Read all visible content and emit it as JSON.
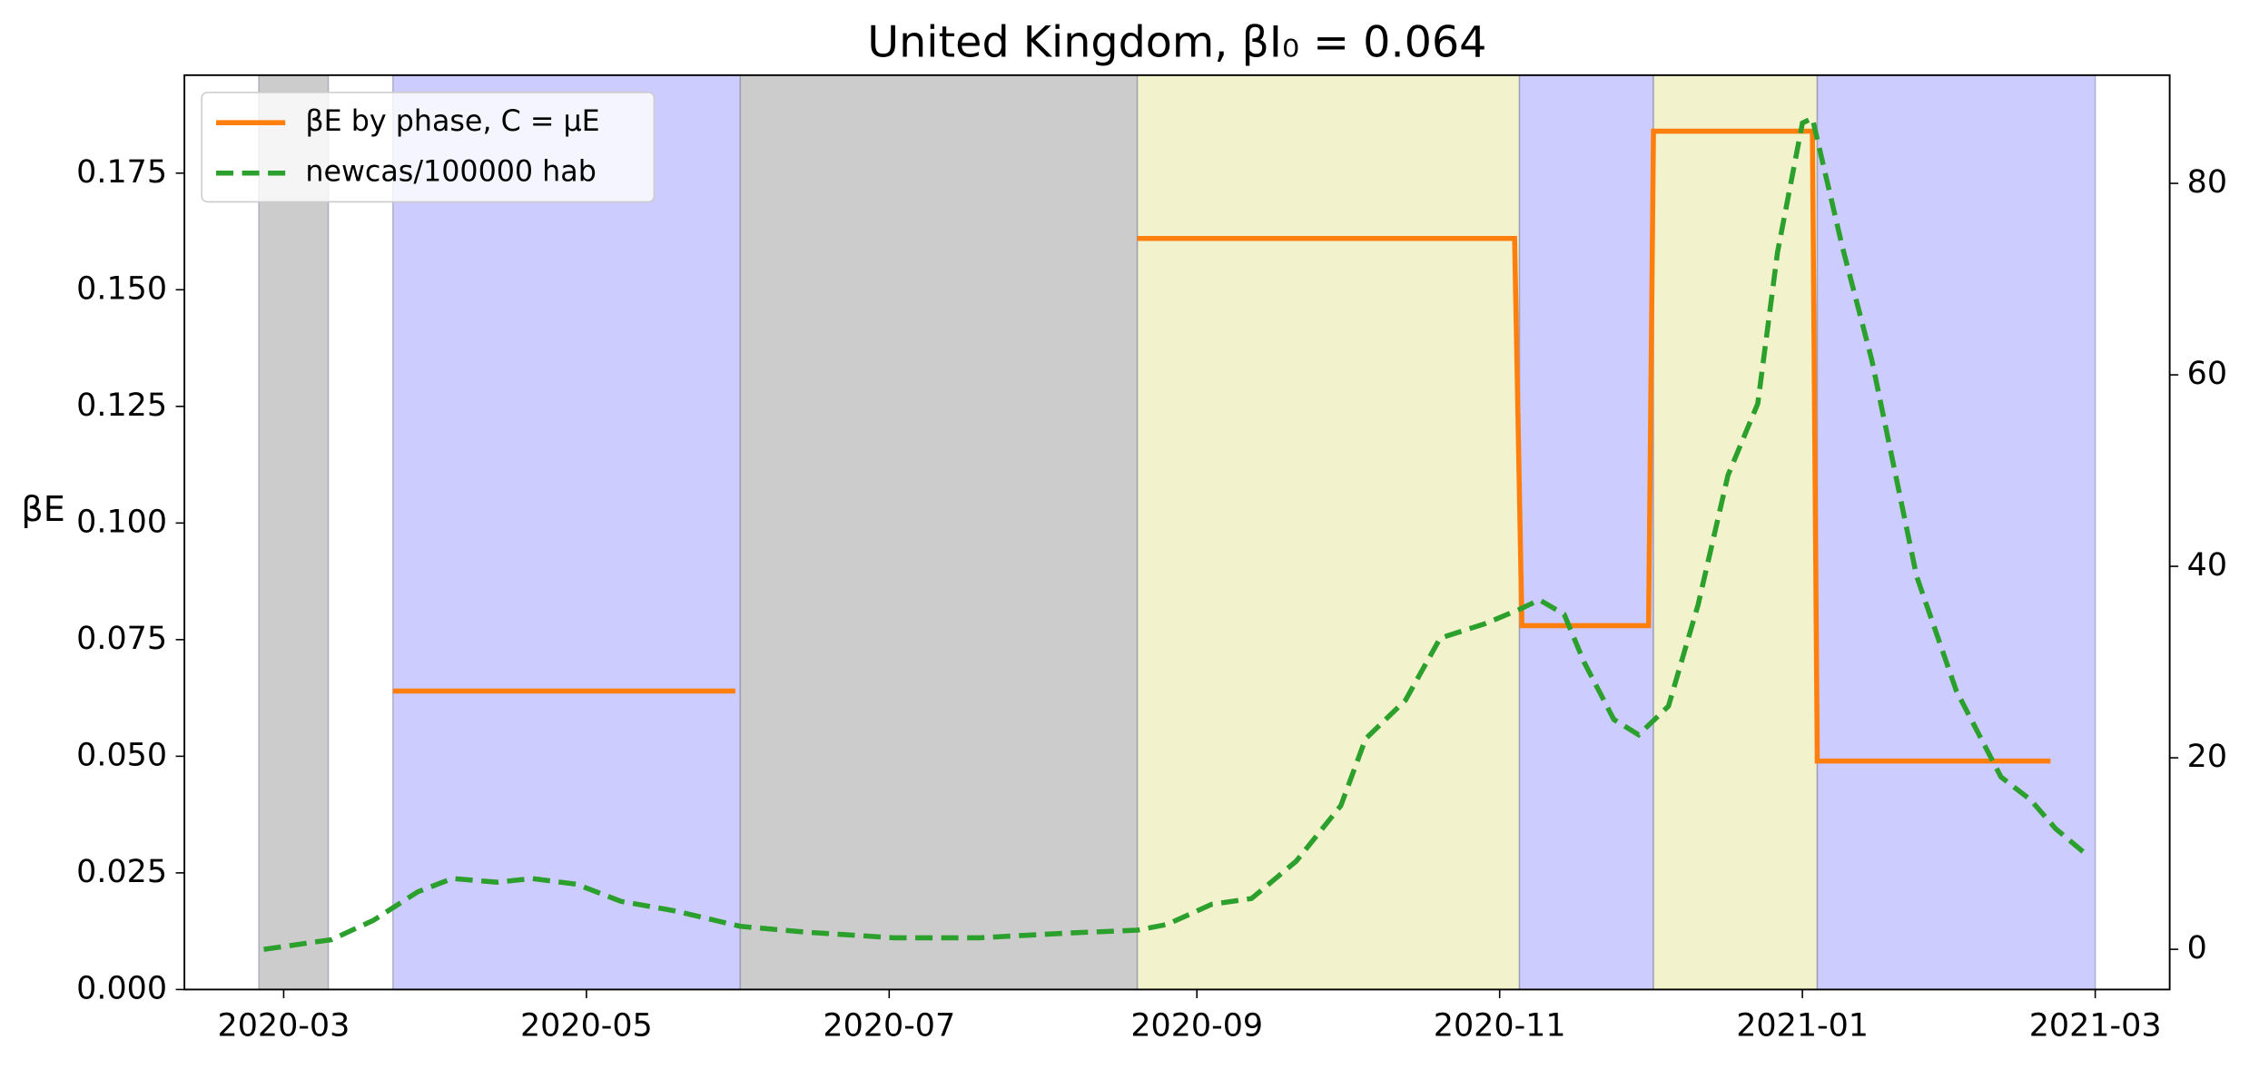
{
  "chart_data": {
    "type": "line",
    "title": "United Kingdom,   βI₀ = 0.064",
    "ylabel": "βE",
    "xlim": [
      -20,
      380
    ],
    "xticks": [
      {
        "value": 0,
        "label": "2020-03"
      },
      {
        "value": 61,
        "label": "2020-05"
      },
      {
        "value": 122,
        "label": "2020-07"
      },
      {
        "value": 184,
        "label": "2020-09"
      },
      {
        "value": 245,
        "label": "2020-11"
      },
      {
        "value": 306,
        "label": "2021-01"
      },
      {
        "value": 365,
        "label": "2021-03"
      }
    ],
    "ylim": [
      0,
      0.196
    ],
    "yticks": [
      {
        "value": 0,
        "label": "0.000"
      },
      {
        "value": 0.025,
        "label": "0.025"
      },
      {
        "value": 0.05,
        "label": "0.050"
      },
      {
        "value": 0.075,
        "label": "0.075"
      },
      {
        "value": 0.1,
        "label": "0.100"
      },
      {
        "value": 0.125,
        "label": "0.125"
      },
      {
        "value": 0.15,
        "label": "0.150"
      },
      {
        "value": 0.175,
        "label": "0.175"
      }
    ],
    "y2lim": [
      -4.2,
      91.3
    ],
    "y2ticks": [
      0,
      20,
      40,
      60,
      80
    ],
    "legend": "upper left",
    "spans": [
      {
        "start": -5,
        "end": 9,
        "color": "#cccccc"
      },
      {
        "start": 22,
        "end": 92,
        "color": "#ccccff"
      },
      {
        "start": 92,
        "end": 172,
        "color": "#cccccc"
      },
      {
        "start": 172,
        "end": 249,
        "color": "#f2f2cc"
      },
      {
        "start": 249,
        "end": 276,
        "color": "#ccccff"
      },
      {
        "start": 276,
        "end": 309,
        "color": "#f2f2cc"
      },
      {
        "start": 309,
        "end": 365,
        "color": "#ccccff"
      }
    ],
    "series": [
      {
        "name": "βE by phase, C = μE",
        "color": "#ff7f0e",
        "dash": false,
        "x": [
          22,
          91,
          null,
          172,
          248,
          249.5,
          275,
          276,
          308,
          309,
          356
        ],
        "values": [
          0.064,
          0.064,
          null,
          0.161,
          0.161,
          0.078,
          0.078,
          0.184,
          0.184,
          0.049,
          0.049
        ]
      },
      {
        "name": "newcas/100000 hab",
        "color": "#2ca02c",
        "dash": true,
        "axis": "y2",
        "x": [
          -4,
          9.6,
          18,
          27,
          34,
          43,
          50,
          59,
          68,
          79,
          92,
          105,
          123,
          140,
          158,
          172,
          178,
          187,
          195,
          204,
          213,
          218,
          226,
          233,
          242,
          249,
          253,
          258,
          262,
          268,
          273,
          279,
          285,
          291,
          297,
          301,
          306,
          308,
          314,
          320,
          329,
          337,
          346,
          352,
          357,
          363
        ],
        "values": [
          0,
          1,
          3,
          6,
          7.4,
          7,
          7.4,
          6.8,
          5,
          4,
          2.4,
          1.8,
          1.2,
          1.2,
          1.7,
          2,
          2.6,
          4.7,
          5.3,
          9.2,
          15,
          22,
          26,
          32.5,
          34,
          35.5,
          36.5,
          35,
          30,
          24,
          22.4,
          25.4,
          36,
          49.5,
          57,
          72.8,
          86.3,
          86.8,
          73.5,
          61.5,
          39,
          27,
          18,
          15.6,
          12.6,
          10
        ]
      }
    ]
  }
}
